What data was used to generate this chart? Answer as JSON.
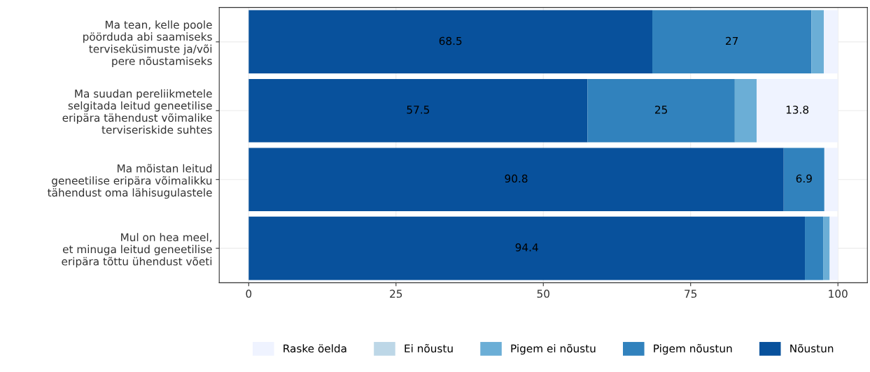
{
  "chart_data": {
    "type": "bar",
    "orientation": "horizontal",
    "stacked": true,
    "categories": [
      "Ma tean, kelle poole\npöörduda abi saamiseks\nterviseküsimuste ja/või\npere nõustamiseks",
      "Ma suudan pereliikmetele\nselgitada leitud geneetilise\neripära tähendust võimalike\nterviseriskide suhtes",
      "Ma mõistan leitud\ngeneetilise eripära võimalikku\ntähendust oma lähisugulastele",
      "Mul on hea meel,\net minuga leitud geneetilise\neripära tõttu ühendust võeti"
    ],
    "series": [
      {
        "name": "Nõustun",
        "color": "#08519c",
        "values": [
          68.5,
          57.5,
          90.8,
          94.4
        ],
        "value_labels": [
          "68.5",
          "57.5",
          "90.8",
          "94.4"
        ]
      },
      {
        "name": "Pigem nõustun",
        "color": "#3182bd",
        "values": [
          27,
          25,
          6.9,
          3.1
        ],
        "value_labels": [
          "27",
          "25",
          "6.9",
          null
        ]
      },
      {
        "name": "Pigem ei nõustu",
        "color": "#6baed6",
        "values": [
          2.1,
          3.7,
          0,
          1.1
        ],
        "value_labels": [
          null,
          null,
          null,
          null
        ]
      },
      {
        "name": "Ei nõustu",
        "color": "#bdd7e7",
        "values": [
          0,
          0,
          0,
          0
        ],
        "value_labels": [
          null,
          null,
          null,
          null
        ]
      },
      {
        "name": "Raske öelda",
        "color": "#eff3ff",
        "values": [
          2.4,
          13.8,
          2.3,
          1.4
        ],
        "value_labels": [
          null,
          "13.8",
          null,
          null
        ]
      }
    ],
    "xlim": [
      -5,
      105
    ],
    "xticks": [
      0,
      25,
      50,
      75,
      100
    ],
    "grid": true,
    "legend": "bottom"
  }
}
